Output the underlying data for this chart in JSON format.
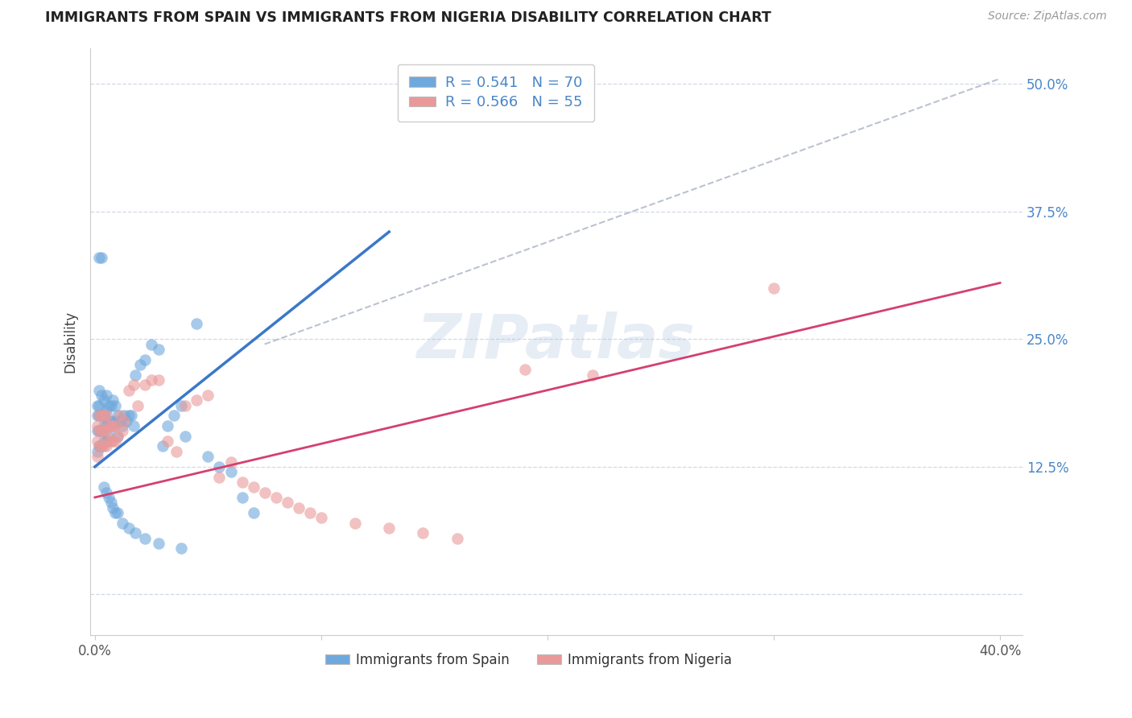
{
  "title": "IMMIGRANTS FROM SPAIN VS IMMIGRANTS FROM NIGERIA DISABILITY CORRELATION CHART",
  "source": "Source: ZipAtlas.com",
  "ylabel": "Disability",
  "y_ticks": [
    0.0,
    0.125,
    0.25,
    0.375,
    0.5
  ],
  "y_tick_labels": [
    "",
    "12.5%",
    "25.0%",
    "37.5%",
    "50.0%"
  ],
  "x_ticks": [
    0.0,
    0.1,
    0.2,
    0.3,
    0.4
  ],
  "x_tick_labels": [
    "0.0%",
    "",
    "",
    "",
    "40.0%"
  ],
  "xlim": [
    -0.002,
    0.41
  ],
  "ylim": [
    -0.04,
    0.535
  ],
  "spain_color": "#6fa8dc",
  "nigeria_color": "#ea9999",
  "spain_line_color": "#3a78c9",
  "nigeria_line_color": "#d44070",
  "dashed_line_color": "#b0b8c8",
  "legend_spain_label": "R = 0.541   N = 70",
  "legend_nigeria_label": "R = 0.566   N = 55",
  "legend_x_label": "Immigrants from Spain",
  "legend_y_label": "Immigrants from Nigeria",
  "background_color": "#ffffff",
  "watermark": "ZIPatlas",
  "spain_line_x": [
    0.0,
    0.13
  ],
  "spain_line_y": [
    0.125,
    0.355
  ],
  "nigeria_line_x": [
    0.0,
    0.4
  ],
  "nigeria_line_y": [
    0.095,
    0.305
  ],
  "dashed_line_x": [
    0.075,
    0.4
  ],
  "dashed_line_y": [
    0.245,
    0.505
  ],
  "spain_x": [
    0.001,
    0.001,
    0.001,
    0.001,
    0.002,
    0.002,
    0.002,
    0.002,
    0.002,
    0.003,
    0.003,
    0.003,
    0.003,
    0.004,
    0.004,
    0.004,
    0.004,
    0.005,
    0.005,
    0.005,
    0.005,
    0.006,
    0.006,
    0.006,
    0.007,
    0.007,
    0.008,
    0.008,
    0.009,
    0.009,
    0.01,
    0.01,
    0.011,
    0.012,
    0.013,
    0.014,
    0.015,
    0.016,
    0.017,
    0.018,
    0.02,
    0.022,
    0.025,
    0.028,
    0.03,
    0.032,
    0.035,
    0.038,
    0.04,
    0.045,
    0.05,
    0.055,
    0.06,
    0.065,
    0.07,
    0.002,
    0.003,
    0.004,
    0.005,
    0.006,
    0.007,
    0.008,
    0.009,
    0.01,
    0.012,
    0.015,
    0.018,
    0.022,
    0.028,
    0.038
  ],
  "spain_y": [
    0.185,
    0.175,
    0.16,
    0.14,
    0.2,
    0.185,
    0.175,
    0.16,
    0.145,
    0.195,
    0.175,
    0.16,
    0.145,
    0.19,
    0.175,
    0.165,
    0.15,
    0.195,
    0.18,
    0.165,
    0.15,
    0.185,
    0.17,
    0.155,
    0.185,
    0.17,
    0.19,
    0.165,
    0.185,
    0.17,
    0.175,
    0.155,
    0.17,
    0.165,
    0.175,
    0.17,
    0.175,
    0.175,
    0.165,
    0.215,
    0.225,
    0.23,
    0.245,
    0.24,
    0.145,
    0.165,
    0.175,
    0.185,
    0.155,
    0.265,
    0.135,
    0.125,
    0.12,
    0.095,
    0.08,
    0.33,
    0.33,
    0.105,
    0.1,
    0.095,
    0.09,
    0.085,
    0.08,
    0.08,
    0.07,
    0.065,
    0.06,
    0.055,
    0.05,
    0.045
  ],
  "nigeria_x": [
    0.001,
    0.001,
    0.001,
    0.002,
    0.002,
    0.002,
    0.003,
    0.003,
    0.003,
    0.004,
    0.004,
    0.004,
    0.005,
    0.005,
    0.005,
    0.006,
    0.006,
    0.007,
    0.007,
    0.008,
    0.008,
    0.009,
    0.009,
    0.01,
    0.011,
    0.012,
    0.013,
    0.015,
    0.017,
    0.019,
    0.022,
    0.025,
    0.028,
    0.032,
    0.036,
    0.04,
    0.045,
    0.05,
    0.055,
    0.06,
    0.065,
    0.07,
    0.075,
    0.08,
    0.085,
    0.09,
    0.095,
    0.1,
    0.115,
    0.13,
    0.145,
    0.16,
    0.19,
    0.22,
    0.3
  ],
  "nigeria_y": [
    0.165,
    0.15,
    0.135,
    0.175,
    0.16,
    0.145,
    0.175,
    0.16,
    0.145,
    0.175,
    0.16,
    0.145,
    0.175,
    0.16,
    0.145,
    0.165,
    0.15,
    0.165,
    0.15,
    0.165,
    0.15,
    0.165,
    0.15,
    0.155,
    0.175,
    0.16,
    0.17,
    0.2,
    0.205,
    0.185,
    0.205,
    0.21,
    0.21,
    0.15,
    0.14,
    0.185,
    0.19,
    0.195,
    0.115,
    0.13,
    0.11,
    0.105,
    0.1,
    0.095,
    0.09,
    0.085,
    0.08,
    0.075,
    0.07,
    0.065,
    0.06,
    0.055,
    0.22,
    0.215,
    0.3
  ]
}
